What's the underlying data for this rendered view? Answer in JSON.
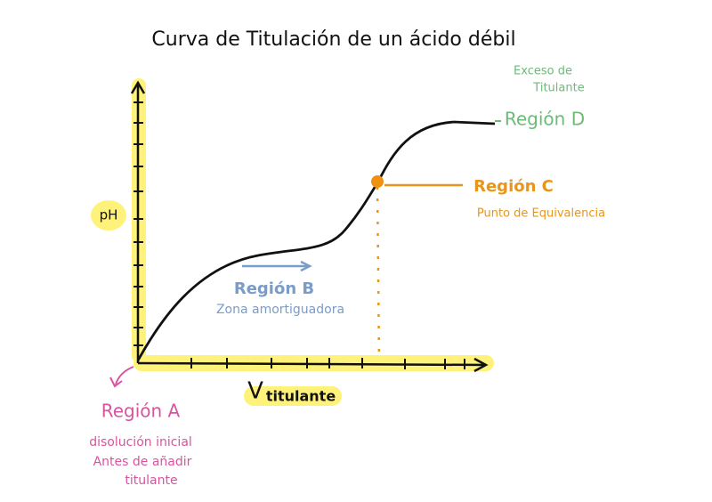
{
  "title": "Curva de Titulación de un ácido débil",
  "axes": {
    "y_label": "pH",
    "x_label_v": "V",
    "x_label": "titulante"
  },
  "regions": [
    {
      "label": "Región A",
      "notes": [
        "disolución inicial",
        "Antes de añadir",
        "titulante"
      ]
    },
    {
      "label": "Región B",
      "notes": [
        "Zona amortiguadora"
      ]
    },
    {
      "label": "Región C",
      "notes": [
        "Punto de Equivalencia"
      ]
    },
    {
      "label": "Región D",
      "notes": [
        "Exceso de",
        "Titulante"
      ]
    }
  ]
}
